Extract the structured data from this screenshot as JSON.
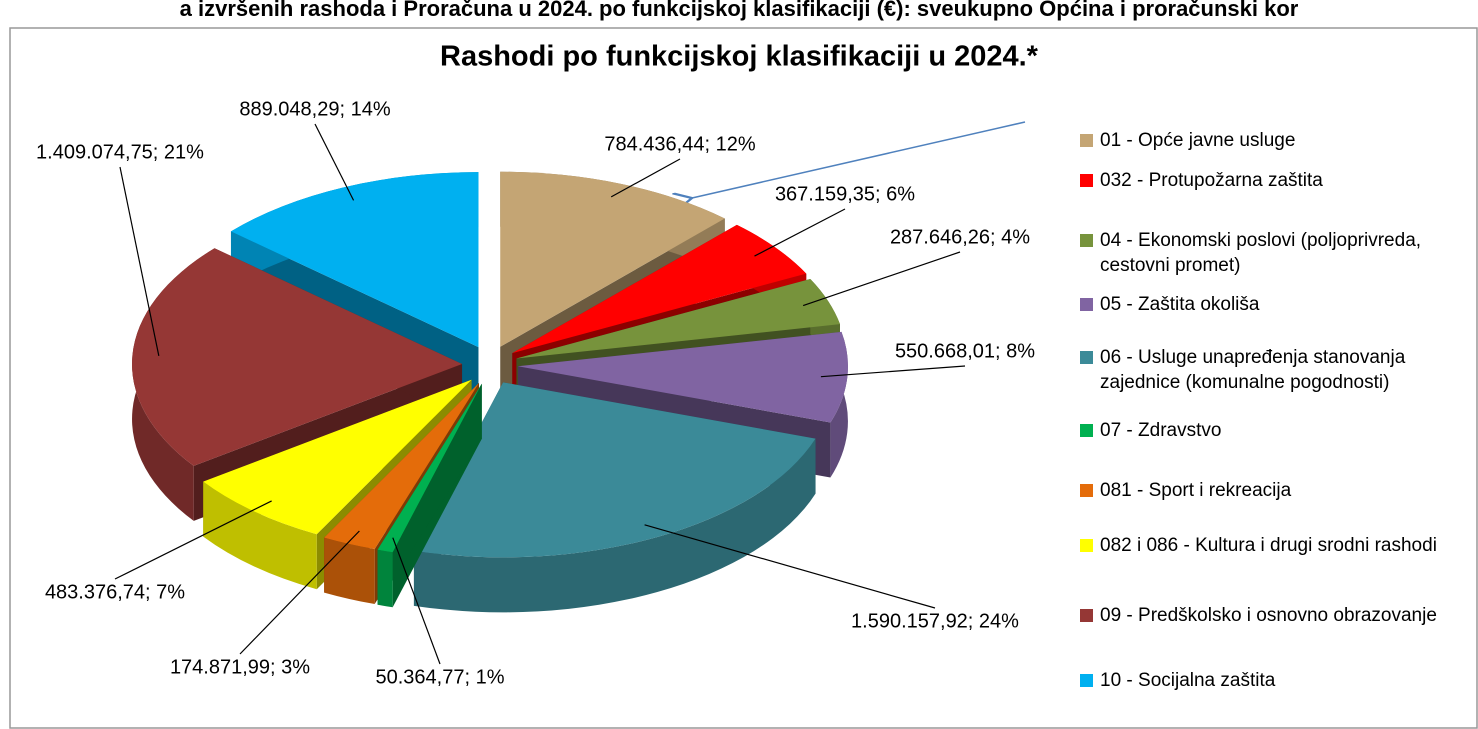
{
  "page_header": "a izvršenih rashoda i Proračuna u 2024. po funkcijskoj klasifikaciji (€): sveukupno Općina i proračunski kor",
  "chart_data": {
    "type": "pie",
    "title": "Rashodi po funkcijskoj klasifikaciji u 2024.*",
    "categories": [
      "01 - Opće javne usluge",
      "032 - Protupožarna zaštita",
      "04 - Ekonomski poslovi (poljoprivreda, cestovni promet)",
      "05 - Zaštita okoliša",
      "06 - Usluge unapređenja stanovanja zajednice  (komunalne pogodnosti)",
      "07 - Zdravstvo",
      "081 - Sport i rekreacija",
      "082 i 086 - Kultura i drugi srodni rashodi",
      "09 - Predškolsko i osnovno obrazovanje",
      "10 - Socijalna zaštita"
    ],
    "values": [
      784436.44,
      367159.35,
      287646.26,
      550668.01,
      1590157.92,
      50364.77,
      174871.99,
      483376.74,
      1409074.75,
      889048.29
    ],
    "value_labels": [
      "784.436,44; 12%",
      "367.159,35; 6%",
      "287.646,26; 4%",
      "550.668,01; 8%",
      "1.590.157,92; 24%",
      "50.364,77; 1%",
      "174.871,99; 3%",
      "483.376,74; 7%",
      "1.409.074,75; 21%",
      "889.048,29; 14%"
    ],
    "colors": [
      "#c4a574",
      "#ff0000",
      "#77933c",
      "#8064a2",
      "#3b8a98",
      "#00b050",
      "#e46c0a",
      "#ffff00",
      "#953735",
      "#00b0f0"
    ],
    "legend": "right"
  }
}
